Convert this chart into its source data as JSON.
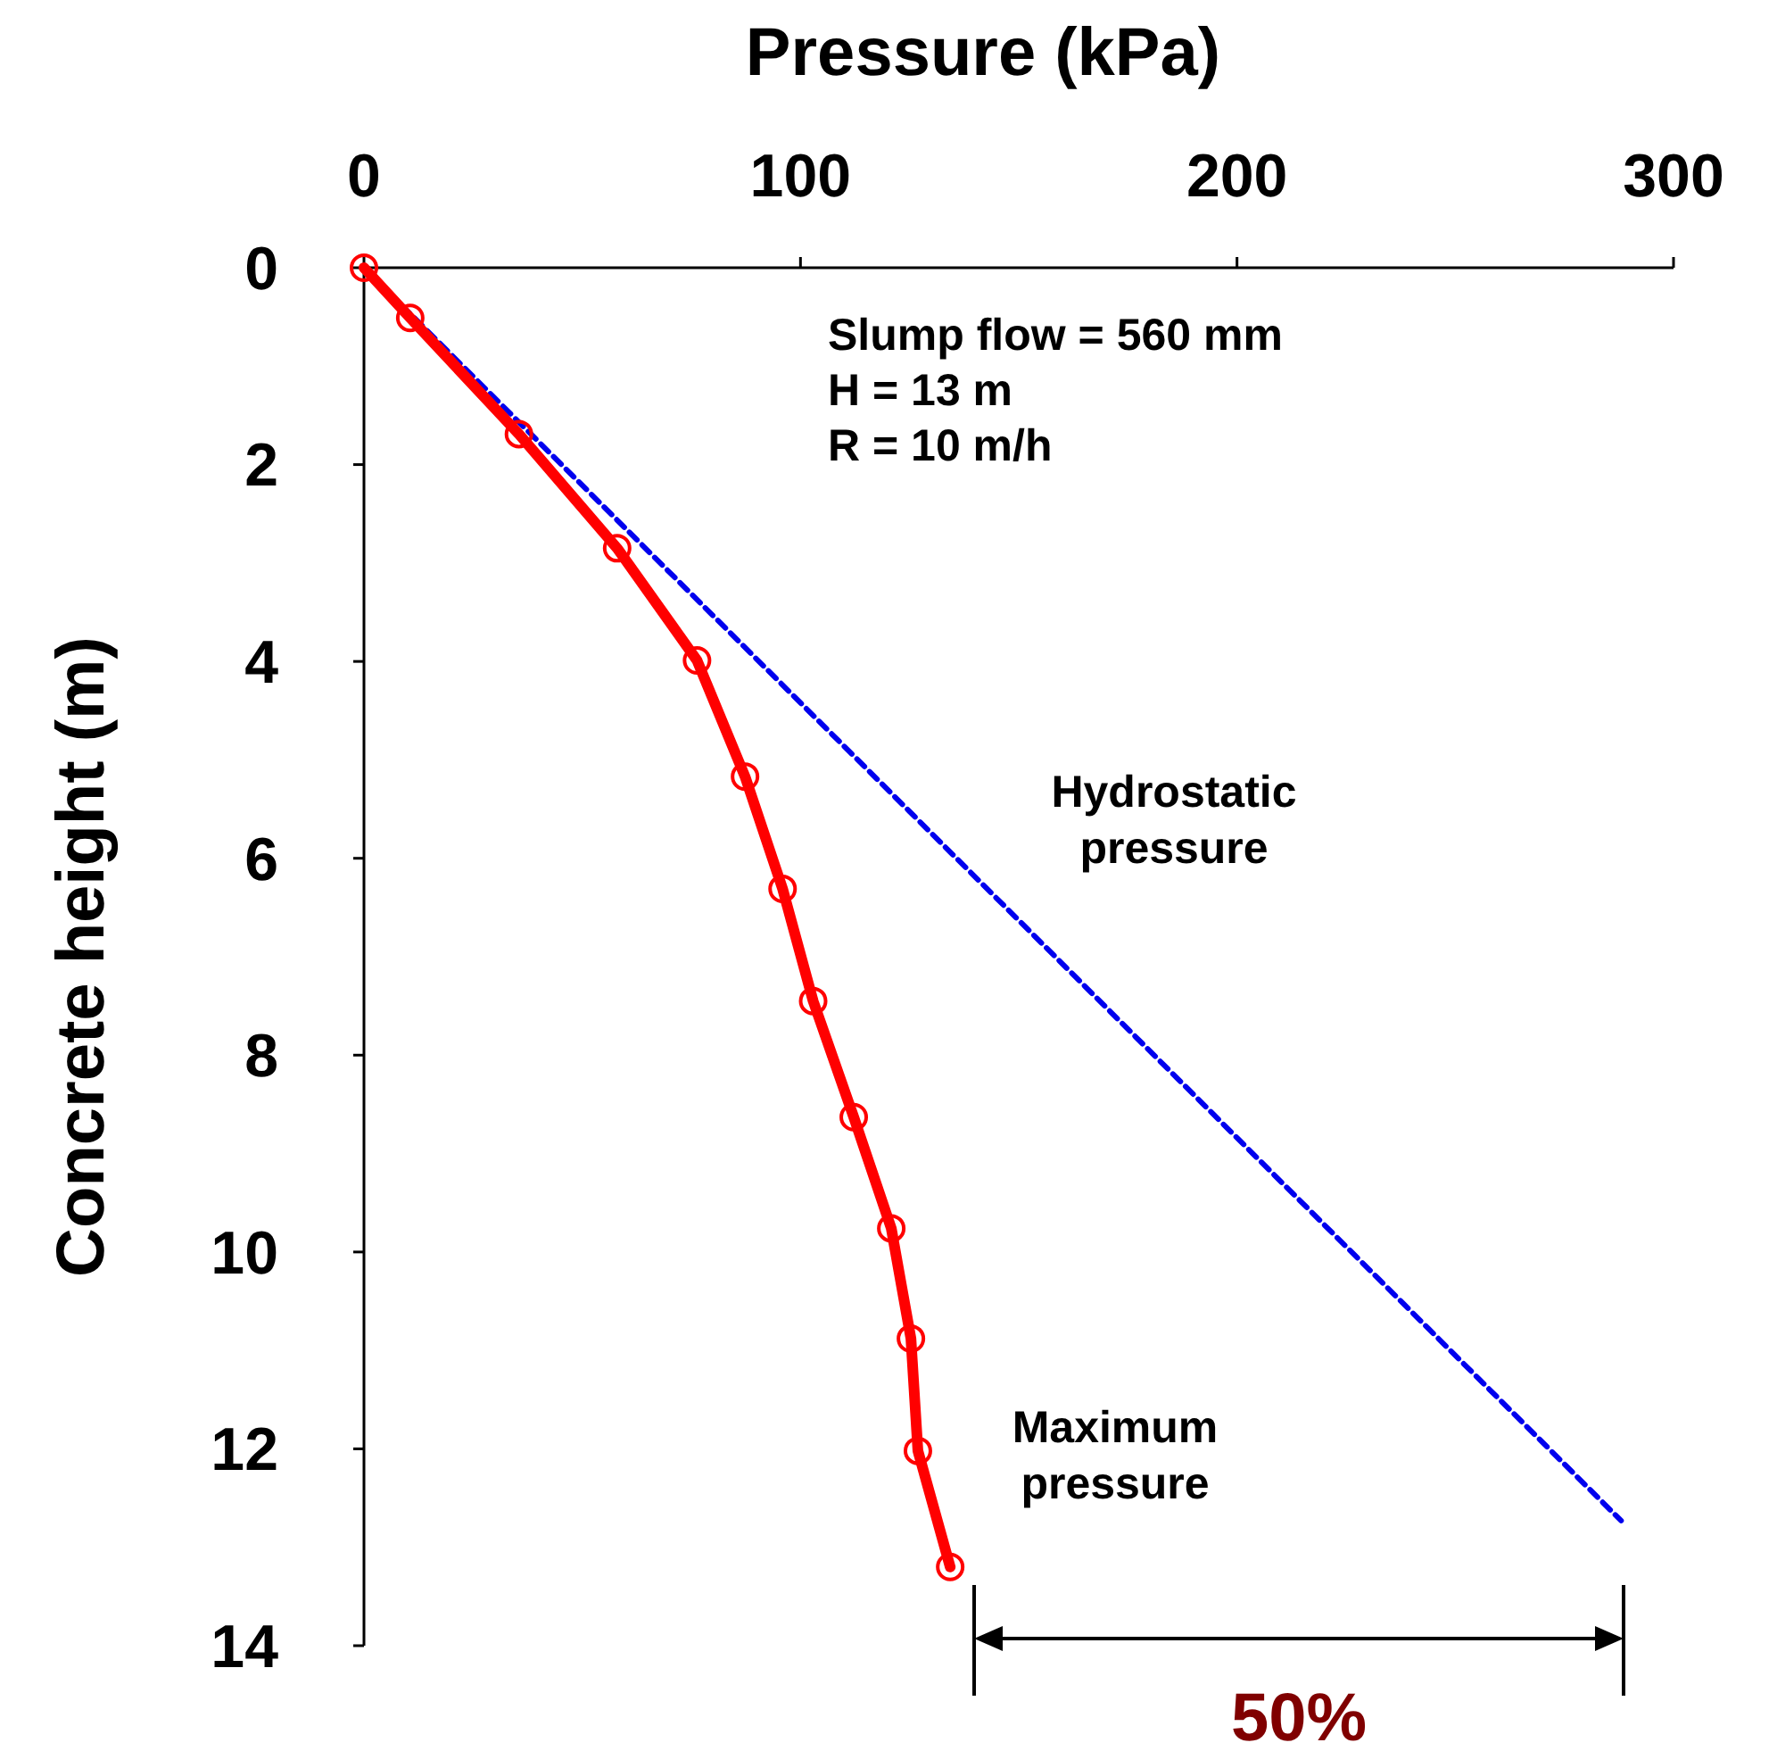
{
  "chart_data": {
    "type": "line",
    "xlabel": "Pressure (kPa)",
    "ylabel": "Concrete height (m)",
    "xlim": [
      0,
      300
    ],
    "xticks": [
      0,
      100,
      200,
      300
    ],
    "ylim": [
      14,
      0
    ],
    "yticks": [
      0,
      2,
      4,
      6,
      8,
      10,
      12,
      14
    ],
    "grid": false,
    "series": [
      {
        "color": "#0000ee",
        "line_style": "dashed",
        "marker": "none",
        "x": [
          0,
          288
        ],
        "values": [
          0,
          12.73
        ]
      },
      {
        "color": "#ff0000",
        "line_style": "solid",
        "marker": "circle",
        "x": [
          0,
          10.6,
          35.5,
          58,
          76.3,
          87.3,
          95.9,
          102.9,
          112.2,
          120.8,
          125.3,
          126.9,
          134.3
        ],
        "values": [
          0,
          0.51,
          1.69,
          2.85,
          3.99,
          5.17,
          6.31,
          7.45,
          8.63,
          9.76,
          10.88,
          12.02,
          13.2
        ]
      }
    ],
    "annotations": [
      "Slump flow = 560 mm",
      "H = 13 m",
      "R = 10 m/h",
      "50%",
      "Hydrostatic pressure",
      "Maximum pressure"
    ]
  }
}
